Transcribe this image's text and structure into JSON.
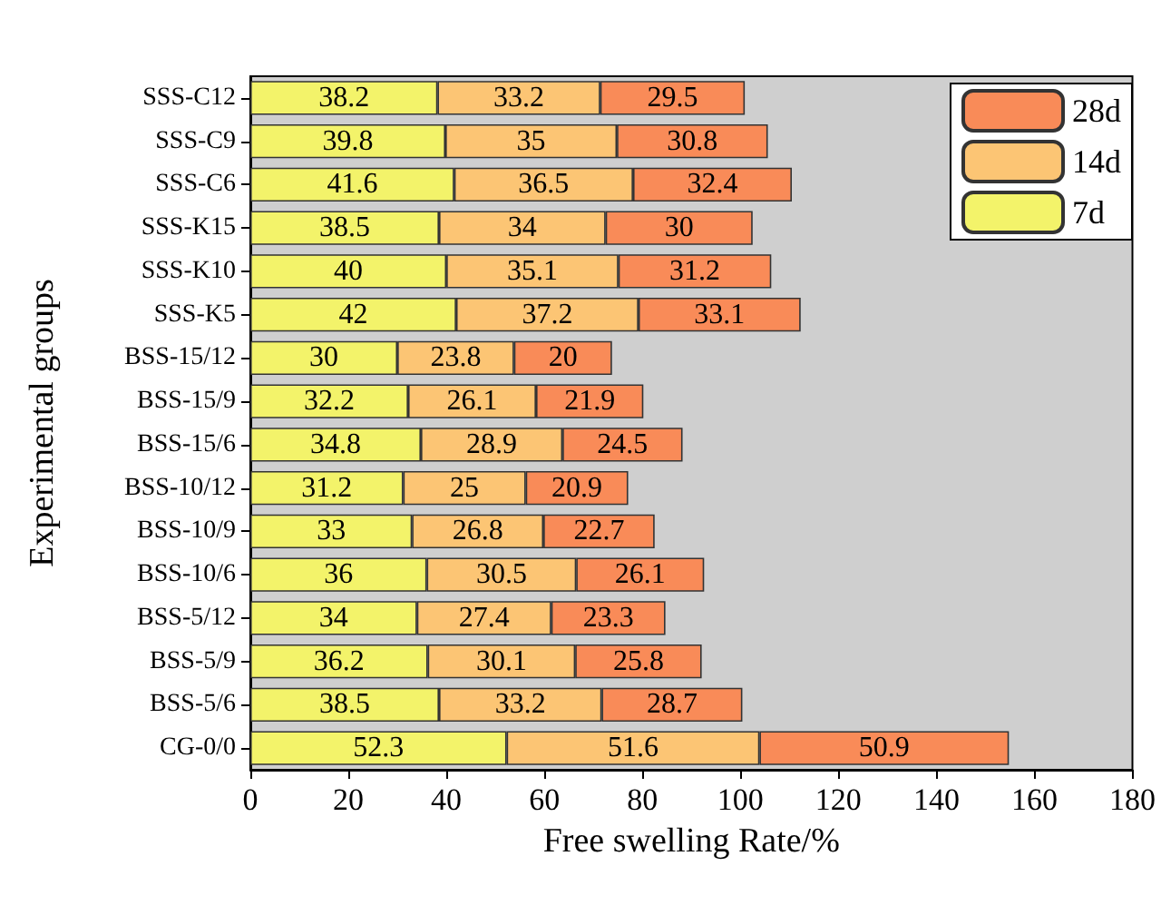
{
  "chart_data": {
    "type": "bar",
    "orientation": "horizontal",
    "stacked": true,
    "xlabel": "Free swelling Rate/%",
    "ylabel": "Experimental groups",
    "categories": [
      "SSS-C12",
      "SSS-C9",
      "SSS-C6",
      "SSS-K15",
      "SSS-K10",
      "SSS-K5",
      "BSS-15/12",
      "BSS-15/9",
      "BSS-15/6",
      "BSS-10/12",
      "BSS-10/9",
      "BSS-10/6",
      "BSS-5/12",
      "BSS-5/9",
      "BSS-5/6",
      "CG-0/0"
    ],
    "series": [
      {
        "name": "7d",
        "color": "#f3f36a",
        "values": [
          38.2,
          39.8,
          41.6,
          38.5,
          40,
          42,
          30,
          32.2,
          34.8,
          31.2,
          33,
          36,
          34,
          36.2,
          38.5,
          52.3
        ]
      },
      {
        "name": "14d",
        "color": "#fcc574",
        "values": [
          33.2,
          35,
          36.5,
          34,
          35.1,
          37.2,
          23.8,
          26.1,
          28.9,
          25,
          26.8,
          30.5,
          27.4,
          30.1,
          33.2,
          51.6
        ]
      },
      {
        "name": "28d",
        "color": "#f98b58",
        "values": [
          29.5,
          30.8,
          32.4,
          30,
          31.2,
          33.1,
          20,
          21.9,
          24.5,
          20.9,
          22.7,
          26.1,
          23.3,
          25.8,
          28.7,
          50.9
        ]
      }
    ],
    "xlim": [
      0,
      180
    ],
    "xticks": [
      0,
      20,
      40,
      60,
      80,
      100,
      120,
      140,
      160,
      180
    ],
    "data_labels": true,
    "legend": "top right",
    "grid": false
  }
}
